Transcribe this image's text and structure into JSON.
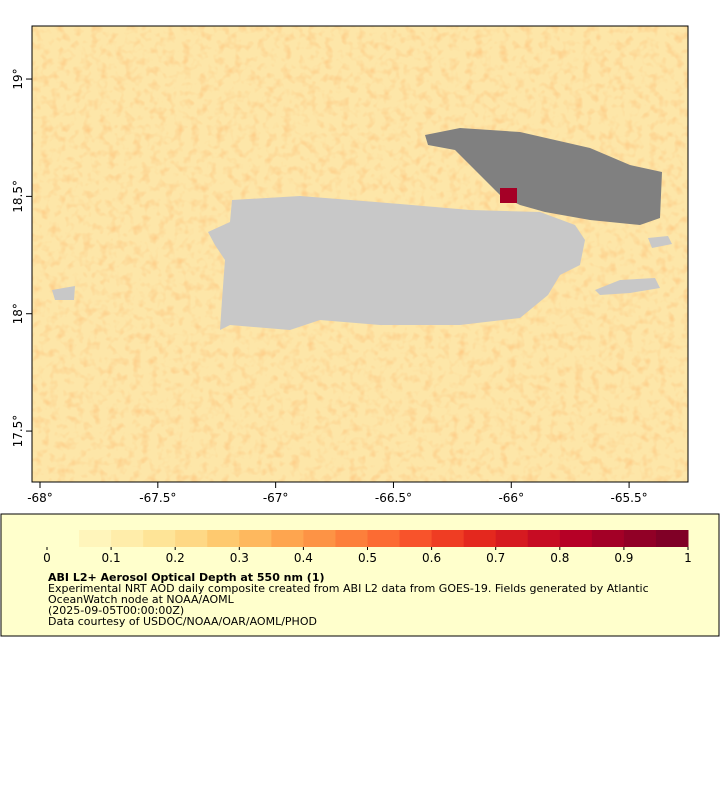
{
  "map": {
    "xlim": [
      -68.034,
      -65.25
    ],
    "ylim": [
      17.283,
      19.226
    ],
    "xticks": [
      {
        "value": -68,
        "label": "-68°"
      },
      {
        "value": -67.5,
        "label": "-67.5°"
      },
      {
        "value": -67,
        "label": "-67°"
      },
      {
        "value": -66.5,
        "label": "-66.5°"
      },
      {
        "value": -66,
        "label": "-66°"
      },
      {
        "value": -65.5,
        "label": "-65.5°"
      }
    ],
    "yticks": [
      {
        "value": 17.5,
        "label": "17.5°"
      },
      {
        "value": 18,
        "label": "18°"
      },
      {
        "value": 18.5,
        "label": "18.5°"
      },
      {
        "value": 19,
        "label": "19°"
      }
    ]
  },
  "colorbar": {
    "lim": [
      0,
      1
    ],
    "ticks": [
      0,
      0.1,
      0.2,
      0.3,
      0.4,
      0.5,
      0.6,
      0.7,
      0.8,
      0.9,
      1
    ],
    "colors": [
      "#ffffcc",
      "#fff5bb",
      "#ffedaa",
      "#fee497",
      "#fed885",
      "#fec96f",
      "#feb85e",
      "#fea54f",
      "#fd9345",
      "#fd7f3b",
      "#fc6b33",
      "#f8532b",
      "#ef3d23",
      "#e4281e",
      "#d61a20",
      "#c70c23",
      "#b60026",
      "#a30026",
      "#910026",
      "#800026"
    ]
  },
  "legend": {
    "title": "ABI L2+ Aerosol Optical Depth at 550 nm (1)",
    "lines": [
      "Experimental NRT AOD daily composite created from ABI L2 data from GOES-19. Fields generated by Atlantic",
      "OceanWatch node at NOAA/AOML",
      "(2025-09-05T00:00:00Z)",
      "Data courtesy of USDOC/NOAA/OAR/AOML/PHOD"
    ]
  }
}
